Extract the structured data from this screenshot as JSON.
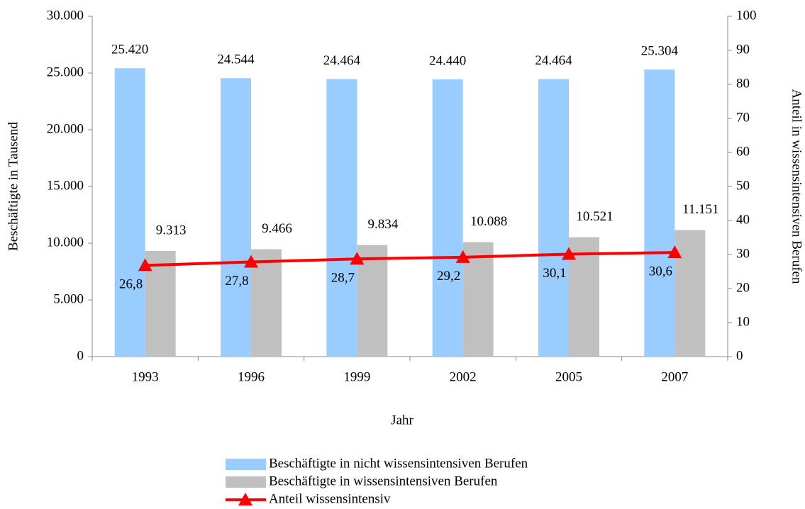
{
  "chart_data": {
    "type": "bar-line",
    "xlabel": "Jahr",
    "ylabel": "Beschäftigte in Tausend",
    "y2label": "Anteil in wissensintensiven Berufen",
    "categories": [
      "1993",
      "1996",
      "1999",
      "2002",
      "2005",
      "2007"
    ],
    "series": [
      {
        "name": "Beschäftigte in nicht wissensintensiven Berufen",
        "type": "bar",
        "color": "#99ccff",
        "values": [
          25420,
          24544,
          24464,
          24440,
          24464,
          25304
        ],
        "value_labels": [
          "25.420",
          "24.544",
          "24.464",
          "24.440",
          "24.464",
          "25.304"
        ]
      },
      {
        "name": "Beschäftigte in wissensintensiven Berufen",
        "type": "bar",
        "color": "#c0c0c0",
        "values": [
          9313,
          9466,
          9834,
          10088,
          10521,
          11151
        ],
        "value_labels": [
          "9.313",
          "9.466",
          "9.834",
          "10.088",
          "10.521",
          "11.151"
        ]
      },
      {
        "name": "Anteil wissensintensiv",
        "type": "line",
        "axis": "y2",
        "color": "#ff0000",
        "values": [
          26.8,
          27.8,
          28.7,
          29.2,
          30.1,
          30.6
        ],
        "value_labels": [
          "26,8",
          "27,8",
          "28,7",
          "29,2",
          "30,1",
          "30,6"
        ]
      }
    ],
    "ylim": [
      0,
      30000
    ],
    "yticks": [
      0,
      {
        "value": 5000,
        "label": "5.000"
      },
      {
        "value": 10000,
        "label": "10.000"
      },
      {
        "value": 15000,
        "label": "15.000"
      },
      {
        "value": 20000,
        "label": "20.000"
      },
      {
        "value": 25000,
        "label": "25.000"
      },
      {
        "value": 30000,
        "label": "30.000"
      }
    ],
    "y2lim": [
      0,
      100
    ],
    "y2ticks": [
      0,
      10,
      20,
      30,
      40,
      50,
      60,
      70,
      80,
      90,
      100
    ],
    "legend": "bottom"
  }
}
